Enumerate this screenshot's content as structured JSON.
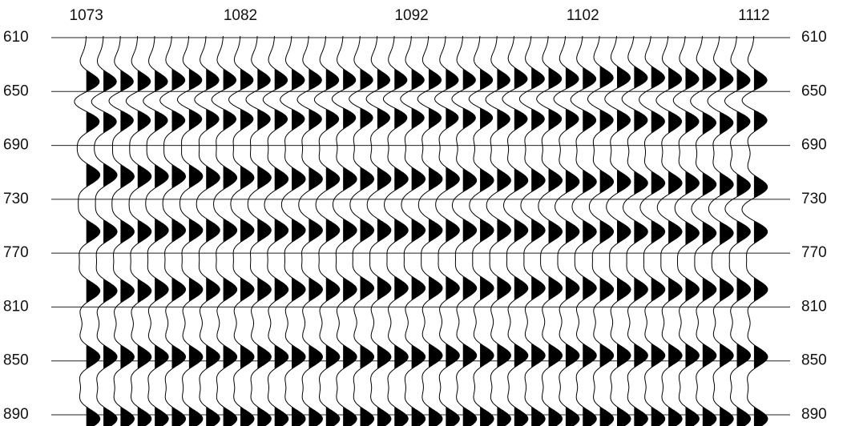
{
  "chart_data": {
    "type": "wiggle",
    "x": [
      1073,
      1074,
      1075,
      1076,
      1077,
      1078,
      1079,
      1080,
      1081,
      1082,
      1083,
      1084,
      1085,
      1086,
      1087,
      1088,
      1089,
      1090,
      1091,
      1092,
      1093,
      1094,
      1095,
      1096,
      1097,
      1098,
      1099,
      1100,
      1101,
      1102,
      1103,
      1104,
      1105,
      1106,
      1107,
      1108,
      1109,
      1110,
      1111,
      1112
    ],
    "xlim": [
      1072.5,
      1112.8
    ],
    "xticks": [
      1073,
      1082,
      1092,
      1102,
      1112
    ],
    "ylim": [
      610,
      890
    ],
    "yticks": [
      610,
      650,
      690,
      730,
      770,
      810,
      850,
      890
    ],
    "grid": true,
    "series": [
      {
        "color": "#000000",
        "values": [
          643,
          643,
          643,
          643,
          643,
          642,
          642,
          642,
          642,
          642,
          642,
          642,
          642,
          642,
          642,
          642,
          642,
          642,
          642,
          642,
          642,
          642,
          642,
          642,
          642,
          641,
          641,
          641,
          641,
          641,
          640,
          640,
          640,
          640,
          641,
          641,
          641,
          641,
          642,
          642
        ]
      },
      {
        "color": "#000000",
        "values": [
          672,
          672,
          671,
          671,
          671,
          671,
          670,
          670,
          670,
          670,
          670,
          670,
          670,
          670,
          670,
          669,
          669,
          669,
          669,
          669,
          669,
          669,
          669,
          669,
          670,
          670,
          670,
          670,
          670,
          671,
          671,
          671,
          671,
          672,
          672,
          672,
          673,
          673,
          672,
          671
        ]
      },
      {
        "color": "#000000",
        "values": [
          712,
          712,
          713,
          713,
          713,
          713,
          713,
          714,
          714,
          714,
          714,
          715,
          715,
          715,
          715,
          715,
          715,
          715,
          715,
          715,
          715,
          715,
          716,
          716,
          716,
          716,
          716,
          716,
          717,
          717,
          717,
          717,
          718,
          718,
          718,
          718,
          719,
          719,
          720,
          721
        ]
      },
      {
        "color": "#000000",
        "values": [
          754,
          754,
          754,
          754,
          753,
          753,
          753,
          753,
          753,
          753,
          753,
          753,
          753,
          753,
          753,
          753,
          753,
          753,
          753,
          753,
          753,
          753,
          753,
          753,
          753,
          753,
          753,
          754,
          754,
          754,
          754,
          754,
          754,
          754,
          754,
          755,
          755,
          755,
          754,
          754
        ]
      },
      {
        "color": "#000000",
        "values": [
          798,
          798,
          798,
          798,
          797,
          797,
          797,
          797,
          797,
          797,
          797,
          797,
          797,
          797,
          797,
          797,
          796,
          796,
          796,
          796,
          796,
          796,
          796,
          796,
          796,
          796,
          796,
          796,
          796,
          796,
          797,
          797,
          797,
          797,
          797,
          797,
          797,
          797,
          797,
          797
        ]
      },
      {
        "color": "#000000",
        "values": [
          847,
          847,
          847,
          847,
          847,
          847,
          847,
          847,
          847,
          847,
          847,
          847,
          847,
          847,
          847,
          847,
          847,
          847,
          847,
          847,
          846,
          846,
          846,
          846,
          846,
          846,
          846,
          846,
          846,
          846,
          846,
          846,
          846,
          846,
          846,
          846,
          846,
          846,
          846,
          847
        ]
      },
      {
        "color": "#000000",
        "values": [
          893,
          893,
          893,
          893,
          893,
          893,
          893,
          893,
          893,
          893,
          893,
          893,
          893,
          893,
          893,
          893,
          893,
          893,
          893,
          893,
          893,
          893,
          893,
          893,
          893,
          893,
          893,
          893,
          893,
          893,
          893,
          893,
          893,
          893,
          893,
          893,
          893,
          893,
          893,
          893
        ]
      }
    ]
  }
}
